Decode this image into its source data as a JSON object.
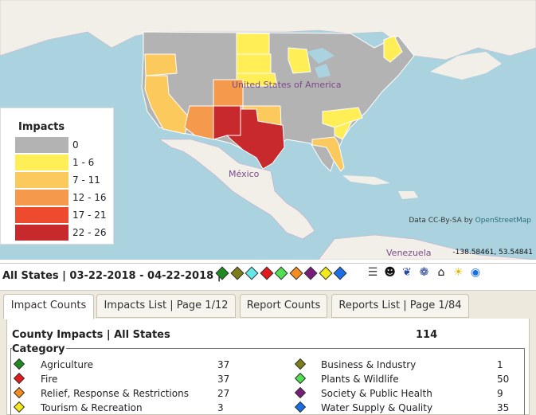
{
  "map": {
    "label_us": "United States of America",
    "label_mexico": "México",
    "label_venezuela": "Venezuela",
    "attribution_prefix": "Data CC-By-SA by",
    "attribution_link": "OpenStreetMap",
    "coordinates": "-138.58461, 53.54841"
  },
  "legend": {
    "title": "Impacts",
    "items": [
      {
        "label": "0",
        "color": "#b3b3b3"
      },
      {
        "label": "1 - 6",
        "color": "#ffee55"
      },
      {
        "label": "7 - 11",
        "color": "#fcc95d"
      },
      {
        "label": "12 - 16",
        "color": "#f59a4d"
      },
      {
        "label": "17 - 21",
        "color": "#ee4b2e"
      },
      {
        "label": "22 - 26",
        "color": "#c8292d"
      }
    ]
  },
  "toolbar": {
    "summary": "All States | 03-22-2018 - 04-22-2018 |",
    "category_filters": [
      {
        "name": "Agriculture",
        "color": "#1f8a1f"
      },
      {
        "name": "Business & Industry",
        "color": "#7d7d1c"
      },
      {
        "name": "Energy",
        "color": "#66e6e6"
      },
      {
        "name": "Fire",
        "color": "#e31a1c"
      },
      {
        "name": "Plants & Wildlife",
        "color": "#52e052"
      },
      {
        "name": "Relief, Response & Restrictions",
        "color": "#f58c1e"
      },
      {
        "name": "Society & Public Health",
        "color": "#7a1a7a"
      },
      {
        "name": "Tourism & Recreation",
        "color": "#f2ea1a"
      },
      {
        "name": "Water Supply & Quality",
        "color": "#1a6ee6"
      }
    ],
    "tools": [
      "report-icon",
      "user-icon",
      "water-drop-icon",
      "noaa-icon",
      "museum-icon",
      "sun-icon",
      "globe-icon"
    ]
  },
  "tabs": [
    {
      "label": "Impact Counts",
      "active": true
    },
    {
      "label": "Impacts List | Page 1/12",
      "active": false
    },
    {
      "label": "Report Counts",
      "active": false
    },
    {
      "label": "Reports List | Page 1/84",
      "active": false
    }
  ],
  "panel": {
    "title": "County Impacts | All States",
    "total": "114",
    "category_title": "Category",
    "categories": [
      {
        "name": "Agriculture",
        "count": "37",
        "color": "#1f8a1f"
      },
      {
        "name": "Fire",
        "count": "37",
        "color": "#e31a1c"
      },
      {
        "name": "Relief, Response & Restrictions",
        "count": "27",
        "color": "#f58c1e"
      },
      {
        "name": "Tourism & Recreation",
        "count": "3",
        "color": "#f2ea1a"
      },
      {
        "name": "Business & Industry",
        "count": "1",
        "color": "#7d7d1c"
      },
      {
        "name": "Plants & Wildlife",
        "count": "50",
        "color": "#52e052"
      },
      {
        "name": "Society & Public Health",
        "count": "9",
        "color": "#7a1a7a"
      },
      {
        "name": "Water Supply & Quality",
        "count": "35",
        "color": "#1a6ee6"
      }
    ]
  }
}
